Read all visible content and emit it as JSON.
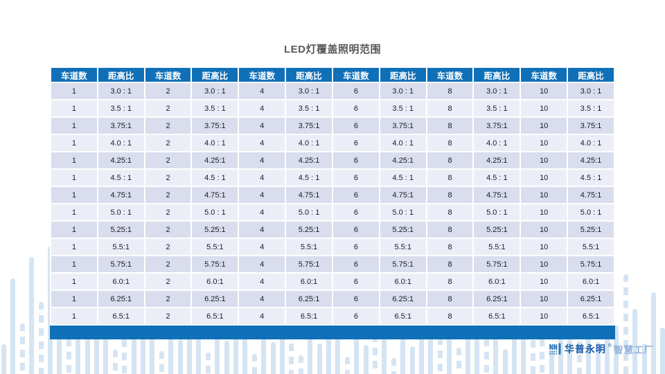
{
  "title": "LED灯覆盖照明范围",
  "table": {
    "lane_header": "车道数",
    "ratio_header": "距高比",
    "column_pairs": 6,
    "lanes": [
      1,
      2,
      4,
      6,
      8,
      10
    ],
    "ratios": [
      "3.0 : 1",
      "3.5 : 1",
      "3.75:1",
      "4.0 : 1",
      "4.25:1",
      "4.5 : 1",
      "4.75:1",
      "5.0 : 1",
      "5.25:1",
      "5.5:1",
      "5.75:1",
      "6.0:1",
      "6.25:1",
      "6.5:1"
    ]
  },
  "brand": {
    "name": "华普永明",
    "reg_mark": "®",
    "suffix": "智慧工厂"
  },
  "colors": {
    "header_blue": "#0f70b8",
    "row_dark": "#d9dded",
    "row_light": "#eceef7",
    "deco_blue": "#d5e4f2",
    "title_gray": "#595959",
    "brand_dark_blue": "#1b5ca8",
    "brand_light_blue": "#8fb0d8"
  }
}
